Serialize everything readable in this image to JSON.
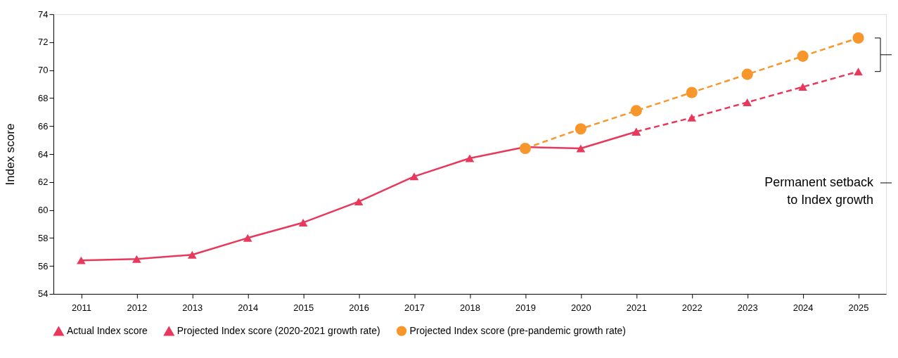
{
  "chart_data": {
    "type": "line",
    "ylabel": "Index score",
    "categories": [
      "2011",
      "2012",
      "2013",
      "2014",
      "2015",
      "2016",
      "2017",
      "2018",
      "2019",
      "2020",
      "2021",
      "2022",
      "2023",
      "2024",
      "2025"
    ],
    "ylim": [
      54,
      74
    ],
    "yticks": [
      54,
      56,
      58,
      60,
      62,
      64,
      66,
      68,
      70,
      72,
      74
    ],
    "grid": false,
    "legend": "bottom",
    "series": [
      {
        "name": "Actual Index score",
        "color": "#e8395c",
        "marker": "triangle",
        "line_style": "solid",
        "values": [
          56.4,
          56.5,
          56.8,
          58.0,
          59.1,
          60.6,
          62.4,
          63.7,
          64.5,
          64.4,
          65.6,
          null,
          null,
          null,
          null
        ]
      },
      {
        "name": "Projected Index score (2020-2021 growth rate)",
        "color": "#e8395c",
        "marker": "triangle",
        "line_style": "dashed",
        "values": [
          null,
          null,
          null,
          null,
          null,
          null,
          null,
          null,
          null,
          null,
          65.6,
          66.6,
          67.7,
          68.8,
          69.9
        ]
      },
      {
        "name": "Projected Index score (pre-pandemic growth rate)",
        "color": "#f7962b",
        "marker": "circle",
        "line_style": "dashed",
        "values": [
          null,
          null,
          null,
          null,
          null,
          null,
          null,
          null,
          64.4,
          65.8,
          67.1,
          68.4,
          69.7,
          71.0,
          72.3
        ]
      }
    ],
    "annotations": [
      "Permanent setback\nto Index growth"
    ]
  }
}
